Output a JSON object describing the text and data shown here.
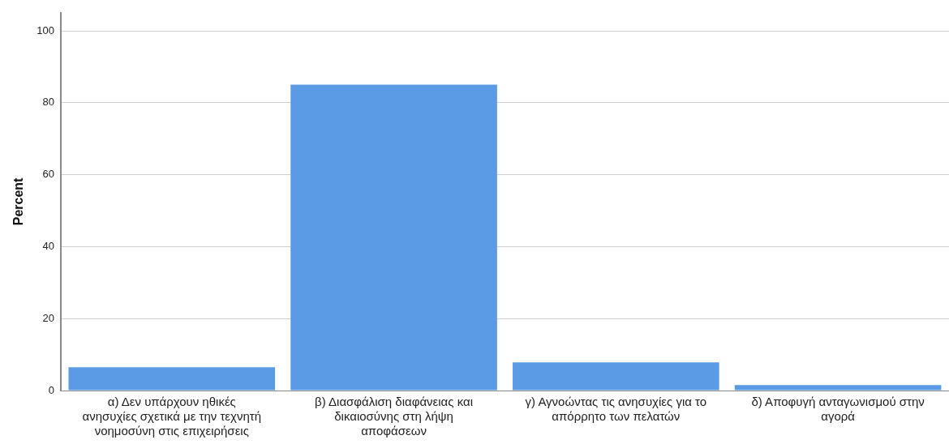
{
  "chart_data": {
    "type": "bar",
    "ylabel": "Percent",
    "categories": [
      "α) Δεν υπάρχουν ηθικές ανησυχίες σχετικά με την τεχνητή νοημοσύνη στις επιχειρήσεις",
      "β) Διασφάλιση διαφάνειας και δικαιοσύνης στη λήψη αποφάσεων",
      "γ) Αγνοώντας τις ανησυχίες για το απόρρητο των πελατών",
      "δ) Αποφυγή ανταγωνισμού στην αγορά"
    ],
    "values": [
      6.5,
      85,
      7.8,
      1.5
    ],
    "color": "#5b9be6",
    "ylim": [
      0,
      105
    ],
    "yticks": [
      0,
      20,
      40,
      60,
      80,
      100
    ],
    "grid": "y",
    "legend": false
  }
}
